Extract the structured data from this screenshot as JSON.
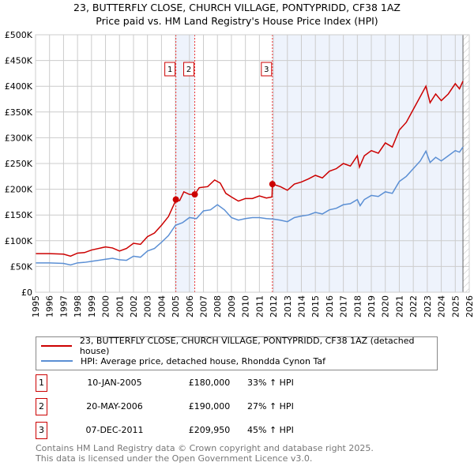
{
  "chart_data": {
    "type": "line",
    "title": "23, BUTTERFLY CLOSE, CHURCH VILLAGE, PONTYPRIDD, CF38 1AZ",
    "subtitle": "Price paid vs. HM Land Registry's House Price Index (HPI)",
    "xlim": [
      1995,
      2026
    ],
    "ylim": [
      0,
      500000
    ],
    "yticks": [
      0,
      50000,
      100000,
      150000,
      200000,
      250000,
      300000,
      350000,
      400000,
      450000,
      500000
    ],
    "ytick_labels": [
      "£0",
      "£50K",
      "£100K",
      "£150K",
      "£200K",
      "£250K",
      "£300K",
      "£350K",
      "£400K",
      "£450K",
      "£500K"
    ],
    "xticks": [
      "1995",
      "1996",
      "1997",
      "1998",
      "1999",
      "2000",
      "2001",
      "2002",
      "2003",
      "2004",
      "2005",
      "2006",
      "2007",
      "2008",
      "2009",
      "2010",
      "2011",
      "2012",
      "2013",
      "2014",
      "2015",
      "2016",
      "2017",
      "2018",
      "2019",
      "2020",
      "2021",
      "2022",
      "2023",
      "2024",
      "2025",
      "2026"
    ],
    "grid": true,
    "series": [
      {
        "name": "23, BUTTERFLY CLOSE, CHURCH VILLAGE, PONTYPRIDD, CF38 1AZ (detached house)",
        "color": "#cc0000",
        "x": [
          1995,
          1996,
          1997,
          1997.5,
          1998,
          1998.5,
          1999,
          2000,
          2000.5,
          2001,
          2001.5,
          2002,
          2002.5,
          2003,
          2003.5,
          2004,
          2004.5,
          2005,
          2005.3,
          2005.6,
          2006,
          2006.38,
          2006.7,
          2007.3,
          2007.8,
          2008.2,
          2008.6,
          2009,
          2009.5,
          2010,
          2010.5,
          2011,
          2011.5,
          2011.9,
          2011.93,
          2012.5,
          2013,
          2013.5,
          2014,
          2014.5,
          2015,
          2015.5,
          2016,
          2016.5,
          2017,
          2017.5,
          2018,
          2018.15,
          2018.5,
          2019,
          2019.5,
          2020,
          2020.5,
          2021,
          2021.5,
          2022,
          2022.5,
          2022.9,
          2023.2,
          2023.6,
          2024,
          2024.5,
          2025,
          2025.3,
          2025.55
        ],
        "y": [
          75,
          75,
          74,
          70,
          76,
          77,
          82,
          88,
          86,
          80,
          85,
          95,
          93,
          108,
          115,
          130,
          147,
          177,
          178,
          195,
          190,
          190,
          203,
          205,
          218,
          212,
          192,
          185,
          177,
          182,
          182,
          187,
          183,
          185,
          210,
          205,
          198,
          210,
          214,
          220,
          227,
          222,
          235,
          240,
          250,
          245,
          265,
          243,
          265,
          275,
          270,
          290,
          282,
          315,
          330,
          355,
          380,
          400,
          368,
          385,
          372,
          385,
          405,
          395,
          410
        ],
        "y_unit": "thousand GBP"
      },
      {
        "name": "HPI: Average price, detached house, Rhondda Cynon Taf",
        "color": "#5b8fd4",
        "x": [
          1995,
          1996,
          1997,
          1997.5,
          1998,
          1998.5,
          1999,
          2000,
          2000.5,
          2001,
          2001.5,
          2002,
          2002.5,
          2003,
          2003.5,
          2004,
          2004.5,
          2005,
          2005.5,
          2006,
          2006.5,
          2007,
          2007.5,
          2008,
          2008.5,
          2009,
          2009.5,
          2010,
          2010.5,
          2011,
          2011.5,
          2012,
          2012.5,
          2013,
          2013.5,
          2014,
          2014.5,
          2015,
          2015.5,
          2016,
          2016.5,
          2017,
          2017.5,
          2018,
          2018.2,
          2018.5,
          2019,
          2019.5,
          2020,
          2020.5,
          2021,
          2021.5,
          2022,
          2022.5,
          2022.9,
          2023.2,
          2023.6,
          2024,
          2024.5,
          2025,
          2025.3,
          2025.55
        ],
        "y": [
          57,
          57,
          56,
          53,
          57,
          58,
          60,
          64,
          66,
          63,
          62,
          70,
          68,
          80,
          85,
          97,
          110,
          130,
          135,
          145,
          143,
          158,
          160,
          170,
          160,
          145,
          140,
          143,
          145,
          145,
          143,
          142,
          140,
          137,
          145,
          148,
          150,
          155,
          152,
          160,
          163,
          170,
          172,
          180,
          168,
          180,
          188,
          186,
          195,
          192,
          215,
          225,
          240,
          255,
          274,
          252,
          262,
          255,
          265,
          275,
          272,
          282
        ],
        "y_unit": "thousand GBP"
      }
    ],
    "sales": [
      {
        "label": "1",
        "x": 2005.03,
        "value": 180000,
        "date": "10-JAN-2005",
        "price": "£180,000",
        "hpi": "33% ↑ HPI"
      },
      {
        "label": "2",
        "x": 2006.38,
        "value": 190000,
        "date": "20-MAY-2006",
        "price": "£190,000",
        "hpi": "27% ↑ HPI"
      },
      {
        "label": "3",
        "x": 2011.93,
        "value": 209950,
        "date": "07-DEC-2011",
        "price": "£209,950",
        "hpi": "45% ↑ HPI"
      }
    ],
    "shaded_ranges": [
      [
        2005.03,
        2006.38
      ],
      [
        2011.93,
        2025.55
      ]
    ],
    "forecast_from": 2025.55
  },
  "footer": {
    "line1": "Contains HM Land Registry data © Crown copyright and database right 2025.",
    "line2": "This data is licensed under the Open Government Licence v3.0."
  }
}
